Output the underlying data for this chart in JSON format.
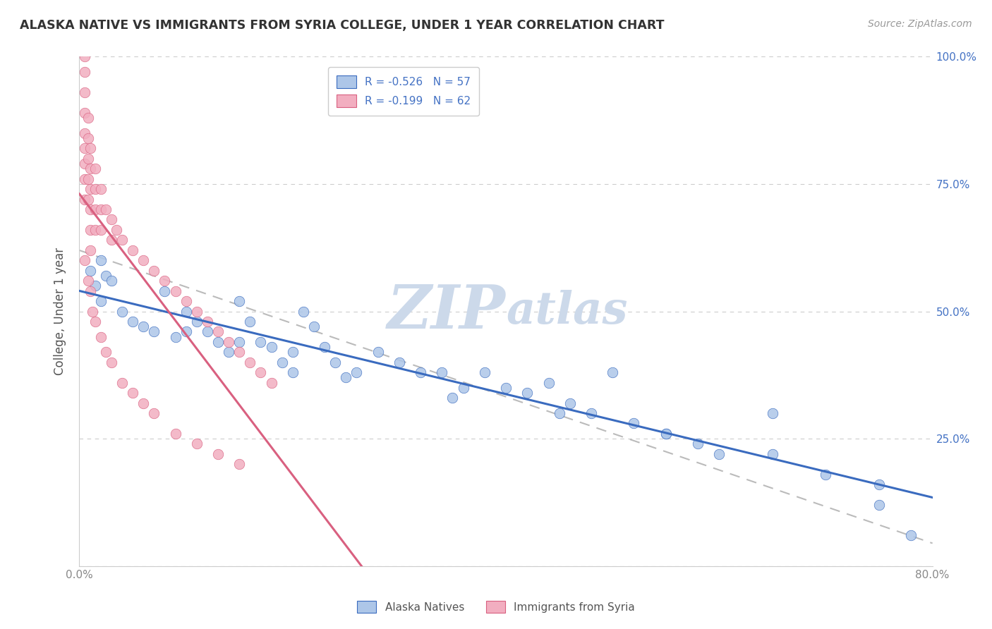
{
  "title": "ALASKA NATIVE VS IMMIGRANTS FROM SYRIA COLLEGE, UNDER 1 YEAR CORRELATION CHART",
  "source": "Source: ZipAtlas.com",
  "ylabel": "College, Under 1 year",
  "xmin": 0.0,
  "xmax": 0.8,
  "ymin": 0.0,
  "ymax": 1.0,
  "xticks": [
    0.0,
    0.1,
    0.2,
    0.3,
    0.4,
    0.5,
    0.6,
    0.7,
    0.8
  ],
  "xtick_labels": [
    "0.0%",
    "",
    "",
    "",
    "",
    "",
    "",
    "",
    "80.0%"
  ],
  "yticks": [
    0.0,
    0.25,
    0.5,
    0.75,
    1.0
  ],
  "ytick_labels_right": [
    "",
    "25.0%",
    "50.0%",
    "75.0%",
    "100.0%"
  ],
  "legend_r1": "R = -0.526",
  "legend_n1": "N = 57",
  "legend_r2": "R = -0.199",
  "legend_n2": "N = 62",
  "color_blue": "#adc6e8",
  "color_pink": "#f2aec0",
  "line_blue": "#3a6bbf",
  "line_pink": "#d96080",
  "legend_text_color": "#4472c4",
  "title_color": "#333333",
  "grid_color": "#cccccc",
  "watermark_color": "#ccd9ea",
  "alaska_x": [
    0.01,
    0.015,
    0.02,
    0.02,
    0.025,
    0.03,
    0.04,
    0.05,
    0.06,
    0.07,
    0.08,
    0.09,
    0.1,
    0.11,
    0.12,
    0.13,
    0.14,
    0.15,
    0.16,
    0.17,
    0.18,
    0.19,
    0.2,
    0.21,
    0.22,
    0.23,
    0.24,
    0.26,
    0.28,
    0.3,
    0.32,
    0.34,
    0.36,
    0.38,
    0.4,
    0.42,
    0.44,
    0.46,
    0.48,
    0.5,
    0.52,
    0.55,
    0.58,
    0.6,
    0.65,
    0.7,
    0.75,
    0.78,
    0.1,
    0.15,
    0.2,
    0.25,
    0.35,
    0.45,
    0.55,
    0.65,
    0.75
  ],
  "alaska_y": [
    0.58,
    0.55,
    0.52,
    0.6,
    0.57,
    0.56,
    0.5,
    0.48,
    0.47,
    0.46,
    0.54,
    0.45,
    0.5,
    0.48,
    0.46,
    0.44,
    0.42,
    0.52,
    0.48,
    0.44,
    0.43,
    0.4,
    0.38,
    0.5,
    0.47,
    0.43,
    0.4,
    0.38,
    0.42,
    0.4,
    0.38,
    0.38,
    0.35,
    0.38,
    0.35,
    0.34,
    0.36,
    0.32,
    0.3,
    0.38,
    0.28,
    0.26,
    0.24,
    0.22,
    0.3,
    0.18,
    0.16,
    0.06,
    0.46,
    0.44,
    0.42,
    0.37,
    0.33,
    0.3,
    0.26,
    0.22,
    0.12
  ],
  "syria_x": [
    0.005,
    0.005,
    0.005,
    0.005,
    0.005,
    0.005,
    0.005,
    0.005,
    0.005,
    0.008,
    0.008,
    0.008,
    0.008,
    0.008,
    0.01,
    0.01,
    0.01,
    0.01,
    0.01,
    0.01,
    0.015,
    0.015,
    0.015,
    0.015,
    0.02,
    0.02,
    0.02,
    0.025,
    0.03,
    0.03,
    0.035,
    0.04,
    0.05,
    0.06,
    0.07,
    0.08,
    0.09,
    0.1,
    0.11,
    0.12,
    0.13,
    0.14,
    0.15,
    0.16,
    0.17,
    0.18,
    0.005,
    0.008,
    0.01,
    0.012,
    0.015,
    0.02,
    0.025,
    0.03,
    0.04,
    0.05,
    0.06,
    0.07,
    0.09,
    0.11,
    0.13,
    0.15
  ],
  "syria_y": [
    1.0,
    0.97,
    0.93,
    0.89,
    0.85,
    0.82,
    0.79,
    0.76,
    0.72,
    0.88,
    0.84,
    0.8,
    0.76,
    0.72,
    0.82,
    0.78,
    0.74,
    0.7,
    0.66,
    0.62,
    0.78,
    0.74,
    0.7,
    0.66,
    0.74,
    0.7,
    0.66,
    0.7,
    0.68,
    0.64,
    0.66,
    0.64,
    0.62,
    0.6,
    0.58,
    0.56,
    0.54,
    0.52,
    0.5,
    0.48,
    0.46,
    0.44,
    0.42,
    0.4,
    0.38,
    0.36,
    0.6,
    0.56,
    0.54,
    0.5,
    0.48,
    0.45,
    0.42,
    0.4,
    0.36,
    0.34,
    0.32,
    0.3,
    0.26,
    0.24,
    0.22,
    0.2
  ]
}
